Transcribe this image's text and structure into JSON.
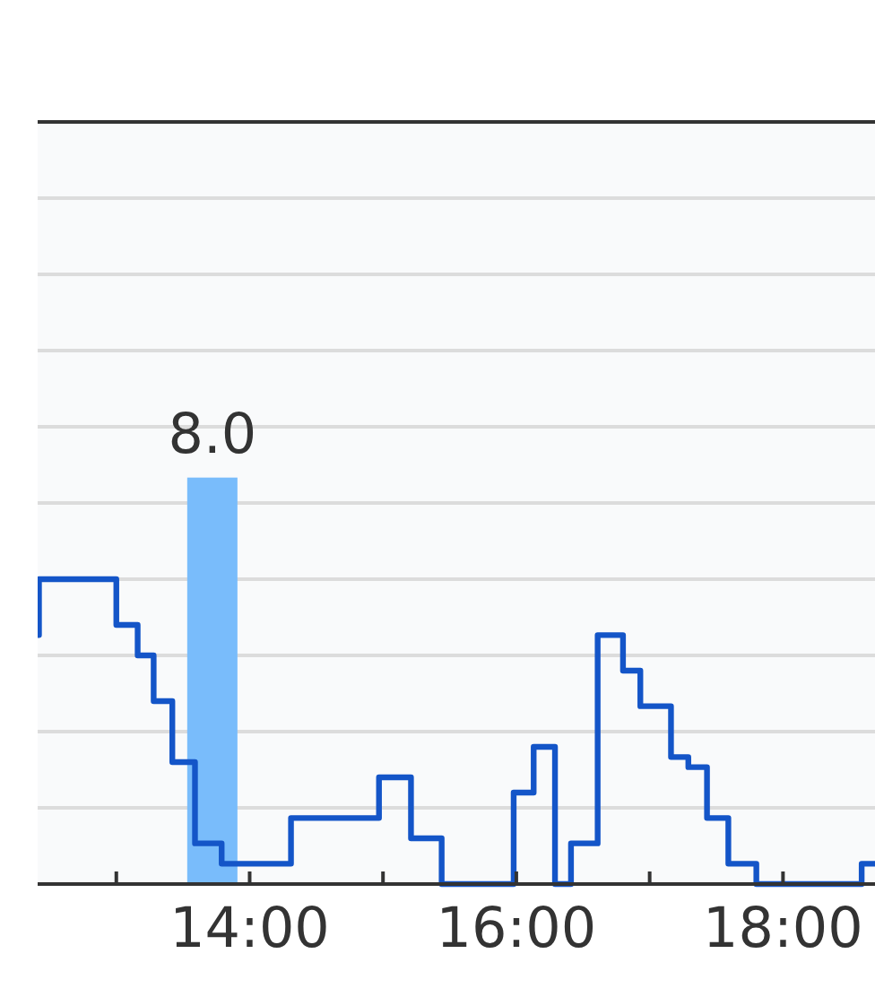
{
  "chart_data": {
    "type": "bar",
    "xlim": [
      12.41,
      18.69
    ],
    "xticks": [
      {
        "value": 13,
        "label": null
      },
      {
        "value": 14,
        "label": "14:00"
      },
      {
        "value": 15,
        "label": null
      },
      {
        "value": 16,
        "label": "16:00"
      },
      {
        "value": 17,
        "label": null
      },
      {
        "value": 18,
        "label": "18:00"
      }
    ],
    "ylim": [
      0,
      15
    ],
    "yticks": [
      {
        "value": 0,
        "label": null
      },
      {
        "value": 1.5,
        "label": null
      },
      {
        "value": 3,
        "label": null
      },
      {
        "value": 4.5,
        "label": null
      },
      {
        "value": 6,
        "label": null
      },
      {
        "value": 7.5,
        "label": null
      },
      {
        "value": 9,
        "label": null
      },
      {
        "value": 10.5,
        "label": null
      },
      {
        "value": 12,
        "label": null
      },
      {
        "value": 13.5,
        "label": null
      },
      {
        "value": 15,
        "label": null
      }
    ],
    "tick_labels": "x",
    "grid": "y",
    "series": [
      {
        "color": "#79bcfb",
        "x": [
          13.72
        ],
        "values": [
          8.0
        ],
        "value_labels": [
          "8.0"
        ]
      },
      {
        "type": "step",
        "color": "#1455c8",
        "x": [
          12.41,
          12.42,
          13.0,
          13.16,
          13.28,
          13.42,
          13.59,
          13.79,
          14.31,
          14.97,
          15.21,
          15.44,
          15.98,
          16.13,
          16.29,
          16.41,
          16.61,
          16.8,
          16.93,
          17.16,
          17.29,
          17.43,
          17.59,
          17.8,
          18.59,
          18.69
        ],
        "values": [
          4.9,
          6.0,
          5.1,
          4.5,
          3.6,
          2.4,
          0.8,
          0.4,
          1.3,
          2.1,
          0.9,
          0,
          1.8,
          2.7,
          0,
          0.8,
          4.9,
          4.2,
          3.5,
          2.5,
          2.3,
          1.3,
          0.4,
          0,
          0.4,
          0.4
        ]
      }
    ]
  }
}
